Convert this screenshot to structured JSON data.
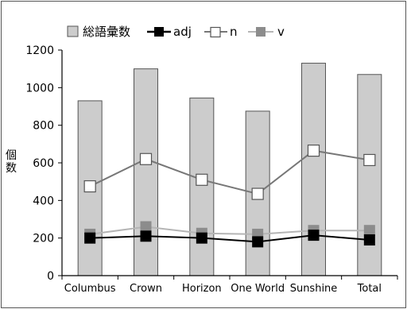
{
  "chart_data": {
    "type": "bar",
    "title": "",
    "xlabel": "",
    "ylabel": "個数",
    "ylim": [
      0,
      1200
    ],
    "yticks": [
      0,
      200,
      400,
      600,
      800,
      1000,
      1200
    ],
    "grid": false,
    "legend_position": "top",
    "categories": [
      "Columbus",
      "Crown",
      "Horizon",
      "One World",
      "Sunshine",
      "Total"
    ],
    "series": [
      {
        "name": "総語彙数",
        "kind": "bar",
        "color": "#cccccc",
        "values": [
          930,
          1100,
          945,
          875,
          1130,
          1070
        ]
      },
      {
        "name": "adj",
        "kind": "line",
        "color": "#000000",
        "marker": "square-filled",
        "values": [
          200,
          210,
          200,
          180,
          215,
          190
        ]
      },
      {
        "name": "n",
        "kind": "line",
        "color": "#777777",
        "marker": "square-open",
        "values": [
          475,
          620,
          510,
          435,
          665,
          615
        ]
      },
      {
        "name": "v",
        "kind": "line",
        "color": "#b5b5b5",
        "marker": "square-gray",
        "values": [
          220,
          260,
          225,
          220,
          240,
          240
        ]
      }
    ]
  }
}
